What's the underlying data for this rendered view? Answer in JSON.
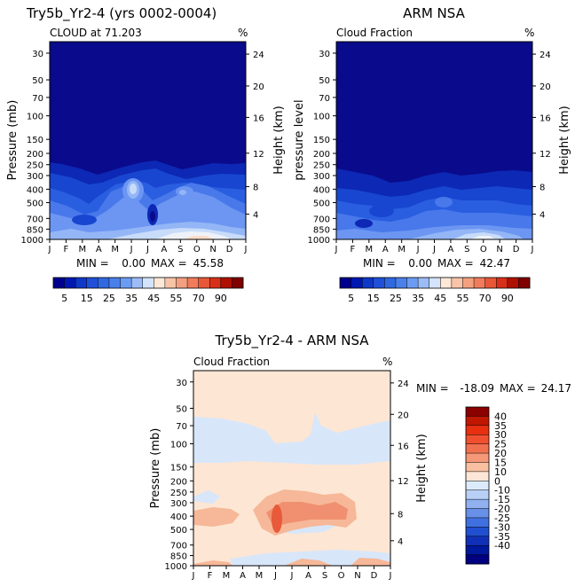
{
  "chart_data": [
    {
      "type": "heatmap",
      "title": "Try5b_Yr2-4 (yrs 0002-0004)",
      "subtitle": "CLOUD at 71.203",
      "units": "%",
      "ylabel": "Pressure (mb)",
      "ylabel_right": "Height (km)",
      "x_ticks": [
        "J",
        "F",
        "M",
        "A",
        "M",
        "J",
        "J",
        "A",
        "S",
        "O",
        "N",
        "D",
        "J"
      ],
      "pressure_ticks": [
        "30",
        "50",
        "70",
        "100",
        "150",
        "200",
        "250",
        "300",
        "400",
        "500",
        "700",
        "850",
        "1000"
      ],
      "height_ticks": [
        "24",
        "20",
        "16",
        "12",
        "8",
        "4"
      ],
      "stats": {
        "min_label": "MIN =",
        "min": "0.00",
        "max_label": "MAX =",
        "max": "45.58"
      }
    },
    {
      "type": "heatmap",
      "title": "ARM NSA",
      "subtitle": "Cloud Fraction",
      "units": "%",
      "ylabel": "pressure level",
      "ylabel_right": "Height (km)",
      "x_ticks": [
        "J",
        "F",
        "M",
        "A",
        "M",
        "J",
        "J",
        "A",
        "S",
        "O",
        "N",
        "D",
        "J"
      ],
      "pressure_ticks": [
        "30",
        "50",
        "70",
        "100",
        "150",
        "200",
        "250",
        "300",
        "400",
        "500",
        "700",
        "850",
        "1000"
      ],
      "height_ticks": [
        "24",
        "20",
        "16",
        "12",
        "8",
        "4"
      ],
      "stats": {
        "min_label": "MIN =",
        "min": "0.00",
        "max_label": "MAX =",
        "max": "42.47"
      }
    },
    {
      "type": "heatmap",
      "title": "Try5b_Yr2-4 - ARM NSA",
      "subtitle": "Cloud Fraction",
      "units": "%",
      "ylabel": "Pressure (mb)",
      "ylabel_right": "Height (km)",
      "x_ticks": [
        "J",
        "F",
        "M",
        "A",
        "M",
        "J",
        "J",
        "A",
        "S",
        "O",
        "N",
        "D",
        "J"
      ],
      "pressure_ticks": [
        "30",
        "50",
        "70",
        "100",
        "150",
        "200",
        "250",
        "300",
        "400",
        "500",
        "700",
        "850",
        "1000"
      ],
      "height_ticks": [
        "24",
        "20",
        "16",
        "12",
        "8",
        "4"
      ],
      "stats": {
        "min_label": "MIN =",
        "min": "-18.09",
        "max_label": "MAX =",
        "max": "24.17"
      }
    }
  ],
  "colorbar_top": {
    "labels": [
      "5",
      "15",
      "25",
      "35",
      "45",
      "55",
      "70",
      "90"
    ],
    "colors": [
      "#00008f",
      "#0018b0",
      "#1038c8",
      "#2050d8",
      "#3068e0",
      "#4a80ea",
      "#6c9cf2",
      "#9cbcf8",
      "#d4e4fb",
      "#fde8d8",
      "#f8c4a8",
      "#f4a080",
      "#f07c5c",
      "#e85838",
      "#d83018",
      "#b01000",
      "#800000"
    ]
  },
  "colorbar_diff": {
    "labels": [
      "40",
      "35",
      "30",
      "25",
      "20",
      "15",
      "10",
      "0",
      "-10",
      "-15",
      "-20",
      "-25",
      "-30",
      "-35",
      "-40"
    ],
    "colors": [
      "#8b0000",
      "#c01800",
      "#e83010",
      "#f05030",
      "#f07050",
      "#f49878",
      "#f8c0a0",
      "#fde6d6",
      "#dcebfb",
      "#b8d0f6",
      "#90b0f0",
      "#6890e8",
      "#4070e0",
      "#2050d0",
      "#1030b8",
      "#00189c",
      "#000080"
    ]
  },
  "contour_colors": {
    "c0": "#0a0a8c",
    "c5": "#0c28b4",
    "c10": "#1846d0",
    "c15": "#2a5ee0",
    "c20": "#4878ea",
    "c25": "#6c96f2",
    "c30": "#94b6f6",
    "c35": "#c8dcfa",
    "c40": "#eef2f8",
    "c45": "#fcdcc8",
    "dneg": "#d8e6fa",
    "dpos": "#fde6d4",
    "dp10": "#f6b898",
    "dp15": "#f09070",
    "dp20": "#e85a3a"
  }
}
